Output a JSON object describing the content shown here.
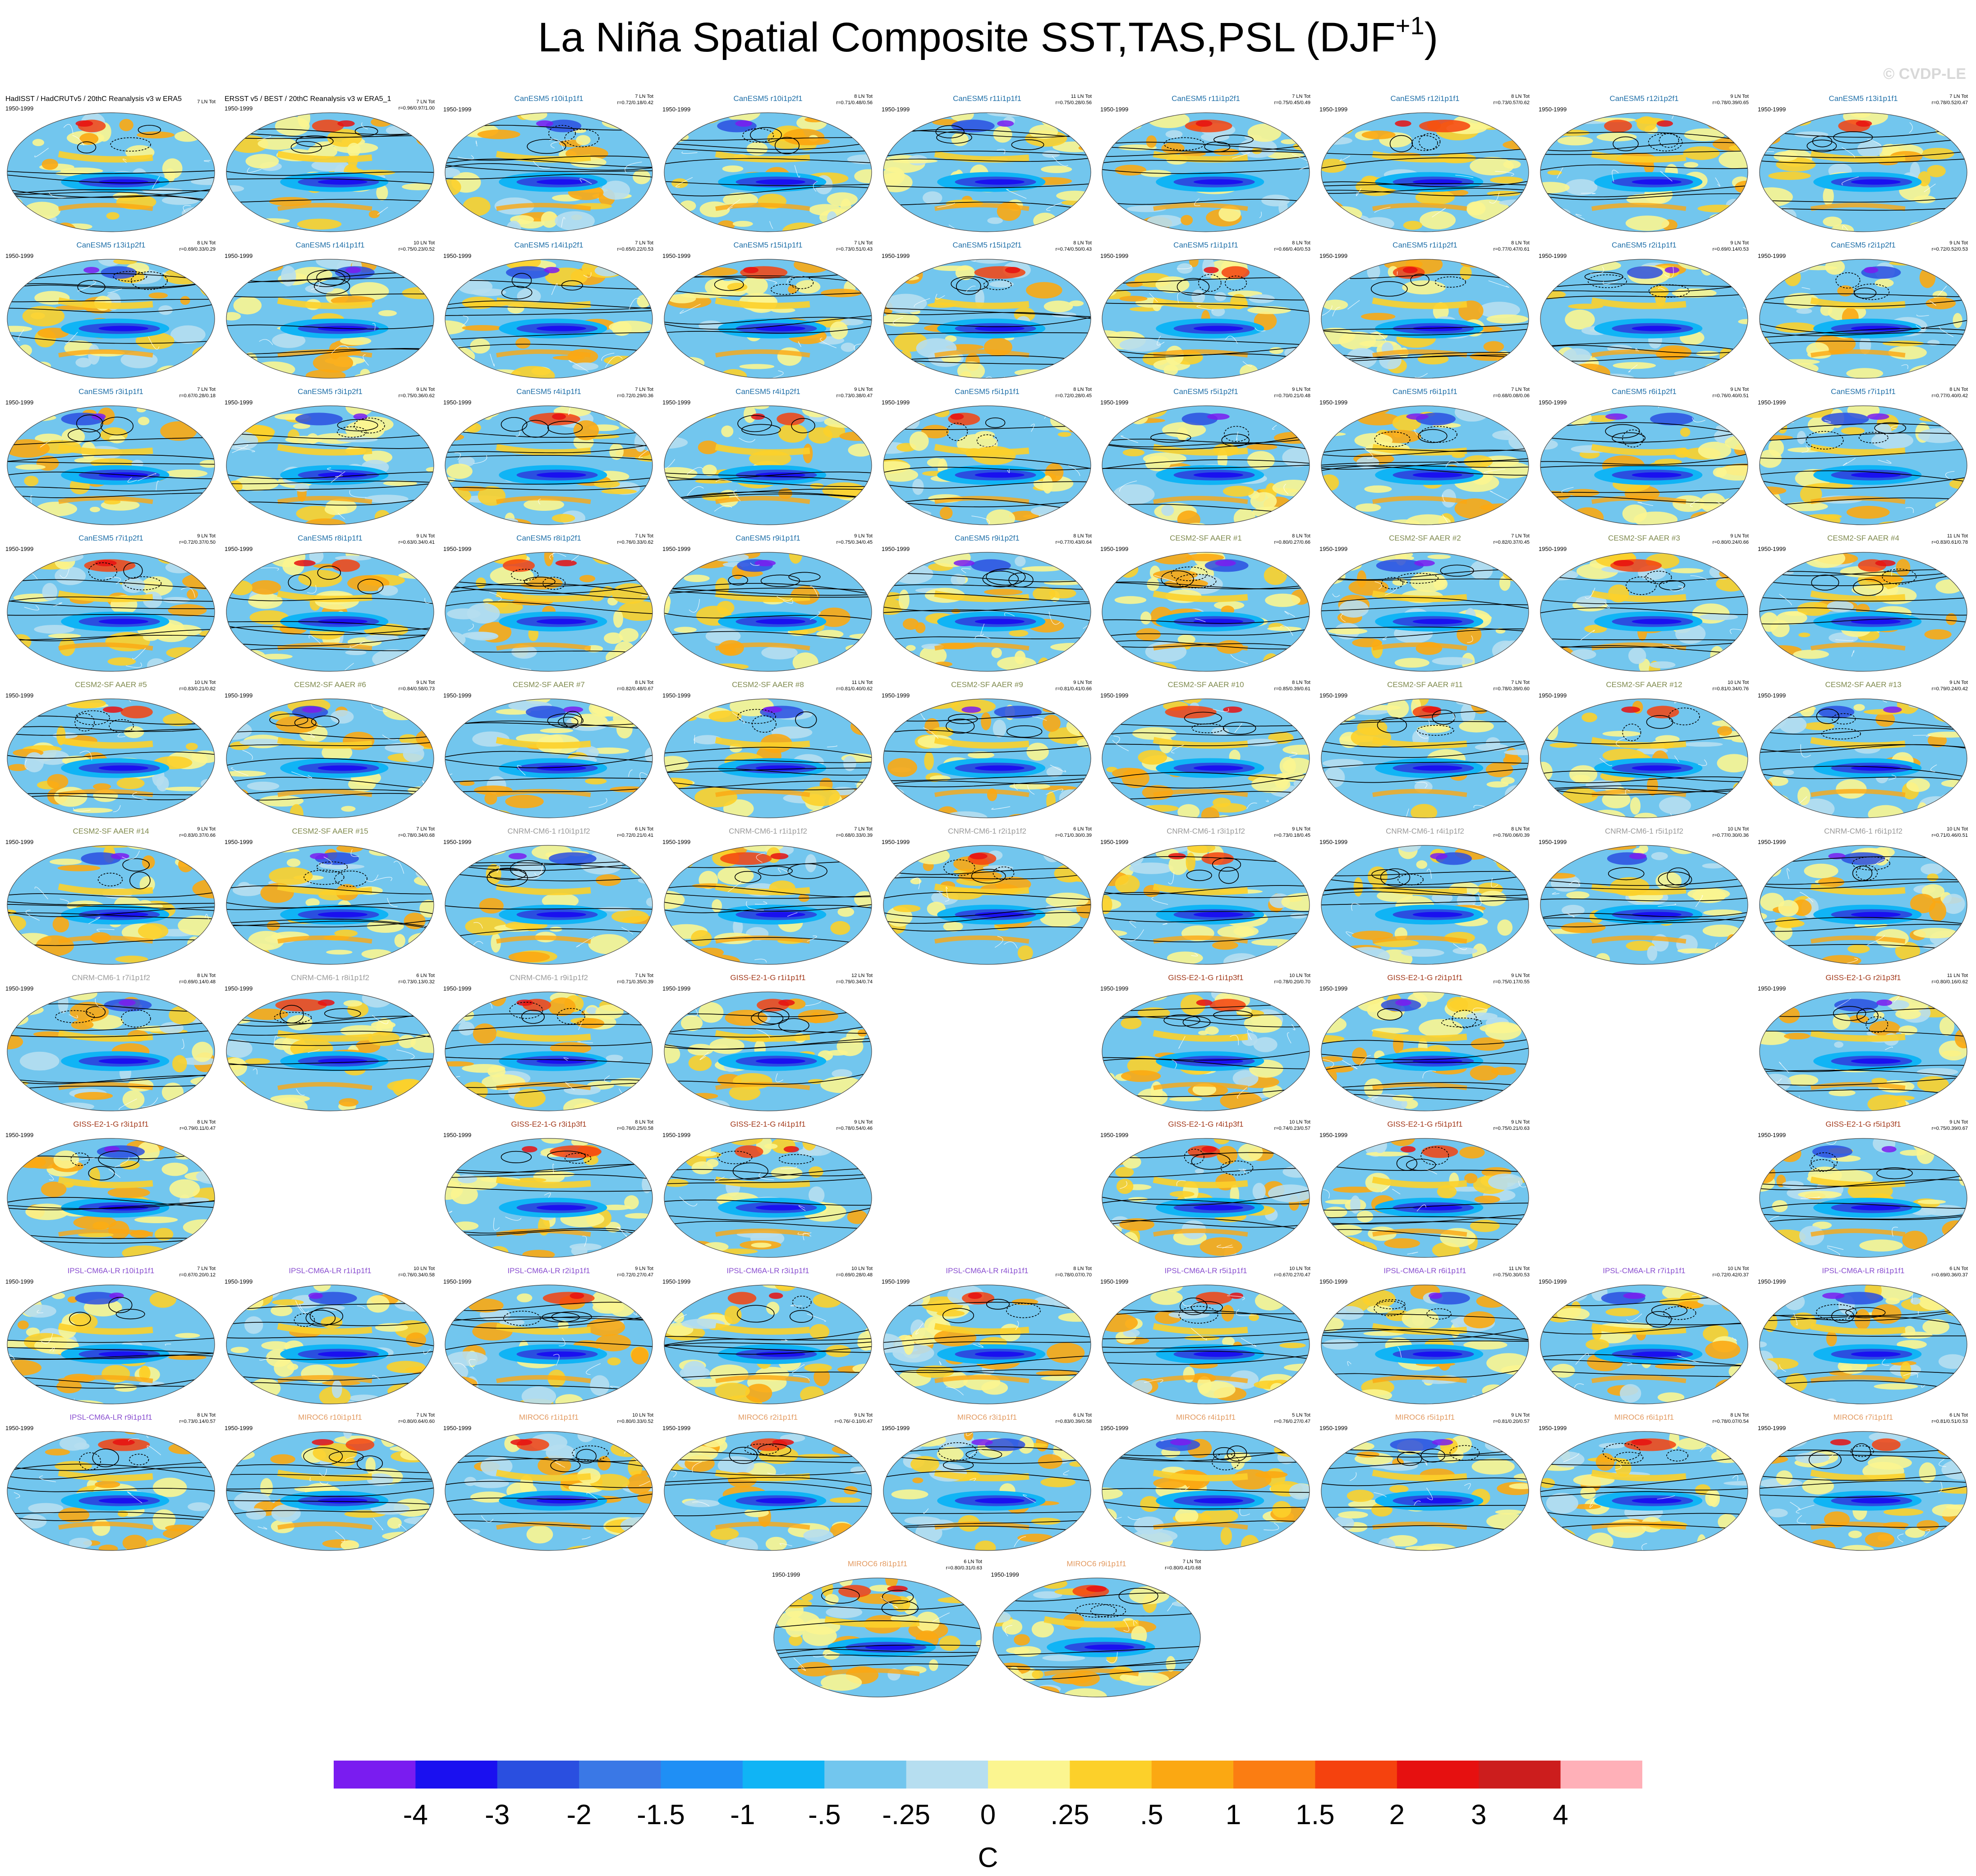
{
  "title_main": "La Niña Spatial Composite SST,TAS,PSL (DJF",
  "title_sup": "+1",
  "title_end": ")",
  "watermark": "© CVDP-LE",
  "period": "1950-1999",
  "colors": {
    "CanESM5": "#1f6fa8",
    "CESM2-SF AAER": "#7f8a4e",
    "CNRM-CM6-1": "#9a9a9a",
    "GISS-E2-1-G": "#a33a1c",
    "IPSL-CM6A-LR": "#8a4fd0",
    "MIROC6": "#e39a60",
    "obs": "#000000"
  },
  "panels": [
    {
      "name": "HadISST / HadCRUTv5 / 20thC Reanalysis v3 w ERA5",
      "group": "obs",
      "tot": "7 LN Tot",
      "stats": "",
      "row": 0,
      "col": 0
    },
    {
      "name": "ERSST v5 / BEST / 20thC Reanalysis v3 w ERA5_1",
      "group": "obs",
      "tot": "7 LN Tot",
      "stats": "r=0.96/0.97/1.00",
      "row": 0,
      "col": 1
    },
    {
      "name": "CanESM5 r10i1p1f1",
      "group": "CanESM5",
      "tot": "7 LN Tot",
      "stats": "r=0.72/0.18/0.42",
      "row": 0,
      "col": 2
    },
    {
      "name": "CanESM5 r10i1p2f1",
      "group": "CanESM5",
      "tot": "8 LN Tot",
      "stats": "r=0.71/0.48/0.56",
      "row": 0,
      "col": 3
    },
    {
      "name": "CanESM5 r11i1p1f1",
      "group": "CanESM5",
      "tot": "11 LN Tot",
      "stats": "r=0.75/0.28/0.56",
      "row": 0,
      "col": 4
    },
    {
      "name": "CanESM5 r11i1p2f1",
      "group": "CanESM5",
      "tot": "7 LN Tot",
      "stats": "r=0.75/0.45/0.49",
      "row": 0,
      "col": 5
    },
    {
      "name": "CanESM5 r12i1p1f1",
      "group": "CanESM5",
      "tot": "8 LN Tot",
      "stats": "r=0.73/0.57/0.62",
      "row": 0,
      "col": 6
    },
    {
      "name": "CanESM5 r12i1p2f1",
      "group": "CanESM5",
      "tot": "9 LN Tot",
      "stats": "r=0.78/0.39/0.65",
      "row": 0,
      "col": 7
    },
    {
      "name": "CanESM5 r13i1p1f1",
      "group": "CanESM5",
      "tot": "7 LN Tot",
      "stats": "r=0.78/0.52/0.47",
      "row": 0,
      "col": 8
    },
    {
      "name": "CanESM5 r13i1p2f1",
      "group": "CanESM5",
      "tot": "8 LN Tot",
      "stats": "r=0.69/0.33/0.29",
      "row": 1,
      "col": 0
    },
    {
      "name": "CanESM5 r14i1p1f1",
      "group": "CanESM5",
      "tot": "10 LN Tot",
      "stats": "r=0.75/0.23/0.52",
      "row": 1,
      "col": 1
    },
    {
      "name": "CanESM5 r14i1p2f1",
      "group": "CanESM5",
      "tot": "7 LN Tot",
      "stats": "r=0.65/0.22/0.53",
      "row": 1,
      "col": 2
    },
    {
      "name": "CanESM5 r15i1p1f1",
      "group": "CanESM5",
      "tot": "7 LN Tot",
      "stats": "r=0.73/0.51/0.43",
      "row": 1,
      "col": 3
    },
    {
      "name": "CanESM5 r15i1p2f1",
      "group": "CanESM5",
      "tot": "8 LN Tot",
      "stats": "r=0.74/0.50/0.43",
      "row": 1,
      "col": 4
    },
    {
      "name": "CanESM5 r1i1p1f1",
      "group": "CanESM5",
      "tot": "8 LN Tot",
      "stats": "r=0.66/0.40/0.53",
      "row": 1,
      "col": 5
    },
    {
      "name": "CanESM5 r1i1p2f1",
      "group": "CanESM5",
      "tot": "8 LN Tot",
      "stats": "r=0.77/0.47/0.61",
      "row": 1,
      "col": 6
    },
    {
      "name": "CanESM5 r2i1p1f1",
      "group": "CanESM5",
      "tot": "9 LN Tot",
      "stats": "r=0.69/0.14/0.53",
      "row": 1,
      "col": 7
    },
    {
      "name": "CanESM5 r2i1p2f1",
      "group": "CanESM5",
      "tot": "9 LN Tot",
      "stats": "r=0.72/0.52/0.53",
      "row": 1,
      "col": 8
    },
    {
      "name": "CanESM5 r3i1p1f1",
      "group": "CanESM5",
      "tot": "7 LN Tot",
      "stats": "r=0.67/0.28/0.18",
      "row": 2,
      "col": 0
    },
    {
      "name": "CanESM5 r3i1p2f1",
      "group": "CanESM5",
      "tot": "9 LN Tot",
      "stats": "r=0.75/0.36/0.62",
      "row": 2,
      "col": 1
    },
    {
      "name": "CanESM5 r4i1p1f1",
      "group": "CanESM5",
      "tot": "7 LN Tot",
      "stats": "r=0.72/0.29/0.36",
      "row": 2,
      "col": 2
    },
    {
      "name": "CanESM5 r4i1p2f1",
      "group": "CanESM5",
      "tot": "9 LN Tot",
      "stats": "r=0.73/0.38/0.47",
      "row": 2,
      "col": 3
    },
    {
      "name": "CanESM5 r5i1p1f1",
      "group": "CanESM5",
      "tot": "8 LN Tot",
      "stats": "r=0.72/0.28/0.45",
      "row": 2,
      "col": 4
    },
    {
      "name": "CanESM5 r5i1p2f1",
      "group": "CanESM5",
      "tot": "9 LN Tot",
      "stats": "r=0.70/0.21/0.48",
      "row": 2,
      "col": 5
    },
    {
      "name": "CanESM5 r6i1p1f1",
      "group": "CanESM5",
      "tot": "7 LN Tot",
      "stats": "r=0.68/0.08/0.06",
      "row": 2,
      "col": 6
    },
    {
      "name": "CanESM5 r6i1p2f1",
      "group": "CanESM5",
      "tot": "9 LN Tot",
      "stats": "r=0.76/0.40/0.51",
      "row": 2,
      "col": 7
    },
    {
      "name": "CanESM5 r7i1p1f1",
      "group": "CanESM5",
      "tot": "8 LN Tot",
      "stats": "r=0.77/0.40/0.42",
      "row": 2,
      "col": 8
    },
    {
      "name": "CanESM5 r7i1p2f1",
      "group": "CanESM5",
      "tot": "9 LN Tot",
      "stats": "r=0.72/0.37/0.50",
      "row": 3,
      "col": 0
    },
    {
      "name": "CanESM5 r8i1p1f1",
      "group": "CanESM5",
      "tot": "9 LN Tot",
      "stats": "r=0.63/0.34/0.41",
      "row": 3,
      "col": 1
    },
    {
      "name": "CanESM5 r8i1p2f1",
      "group": "CanESM5",
      "tot": "7 LN Tot",
      "stats": "r=0.76/0.33/0.62",
      "row": 3,
      "col": 2
    },
    {
      "name": "CanESM5 r9i1p1f1",
      "group": "CanESM5",
      "tot": "9 LN Tot",
      "stats": "r=0.75/0.34/0.45",
      "row": 3,
      "col": 3
    },
    {
      "name": "CanESM5 r9i1p2f1",
      "group": "CanESM5",
      "tot": "8 LN Tot",
      "stats": "r=0.77/0.43/0.64",
      "row": 3,
      "col": 4
    },
    {
      "name": "CESM2-SF AAER #1",
      "group": "CESM2-SF AAER",
      "tot": "8 LN Tot",
      "stats": "r=0.80/0.27/0.66",
      "row": 3,
      "col": 5
    },
    {
      "name": "CESM2-SF AAER #2",
      "group": "CESM2-SF AAER",
      "tot": "7 LN Tot",
      "stats": "r=0.82/0.37/0.45",
      "row": 3,
      "col": 6
    },
    {
      "name": "CESM2-SF AAER #3",
      "group": "CESM2-SF AAER",
      "tot": "9 LN Tot",
      "stats": "r=0.80/0.24/0.66",
      "row": 3,
      "col": 7
    },
    {
      "name": "CESM2-SF AAER #4",
      "group": "CESM2-SF AAER",
      "tot": "11 LN Tot",
      "stats": "r=0.83/0.61/0.78",
      "row": 3,
      "col": 8
    },
    {
      "name": "CESM2-SF AAER #5",
      "group": "CESM2-SF AAER",
      "tot": "10 LN Tot",
      "stats": "r=0.83/0.21/0.82",
      "row": 4,
      "col": 0
    },
    {
      "name": "CESM2-SF AAER #6",
      "group": "CESM2-SF AAER",
      "tot": "9 LN Tot",
      "stats": "r=0.84/0.58/0.73",
      "row": 4,
      "col": 1
    },
    {
      "name": "CESM2-SF AAER #7",
      "group": "CESM2-SF AAER",
      "tot": "8 LN Tot",
      "stats": "r=0.82/0.48/0.67",
      "row": 4,
      "col": 2
    },
    {
      "name": "CESM2-SF AAER #8",
      "group": "CESM2-SF AAER",
      "tot": "11 LN Tot",
      "stats": "r=0.81/0.40/0.62",
      "row": 4,
      "col": 3
    },
    {
      "name": "CESM2-SF AAER #9",
      "group": "CESM2-SF AAER",
      "tot": "9 LN Tot",
      "stats": "r=0.81/0.41/0.66",
      "row": 4,
      "col": 4
    },
    {
      "name": "CESM2-SF AAER #10",
      "group": "CESM2-SF AAER",
      "tot": "8 LN Tot",
      "stats": "r=0.85/0.39/0.61",
      "row": 4,
      "col": 5
    },
    {
      "name": "CESM2-SF AAER #11",
      "group": "CESM2-SF AAER",
      "tot": "7 LN Tot",
      "stats": "r=0.78/0.39/0.60",
      "row": 4,
      "col": 6
    },
    {
      "name": "CESM2-SF AAER #12",
      "group": "CESM2-SF AAER",
      "tot": "10 LN Tot",
      "stats": "r=0.81/0.34/0.76",
      "row": 4,
      "col": 7
    },
    {
      "name": "CESM2-SF AAER #13",
      "group": "CESM2-SF AAER",
      "tot": "9 LN Tot",
      "stats": "r=0.79/0.24/0.42",
      "row": 4,
      "col": 8
    },
    {
      "name": "CESM2-SF AAER #14",
      "group": "CESM2-SF AAER",
      "tot": "9 LN Tot",
      "stats": "r=0.83/0.37/0.66",
      "row": 5,
      "col": 0
    },
    {
      "name": "CESM2-SF AAER #15",
      "group": "CESM2-SF AAER",
      "tot": "7 LN Tot",
      "stats": "r=0.78/0.34/0.68",
      "row": 5,
      "col": 1
    },
    {
      "name": "CNRM-CM6-1 r10i1p1f2",
      "group": "CNRM-CM6-1",
      "tot": "6 LN Tot",
      "stats": "r=0.72/0.21/0.41",
      "row": 5,
      "col": 2
    },
    {
      "name": "CNRM-CM6-1 r1i1p1f2",
      "group": "CNRM-CM6-1",
      "tot": "7 LN Tot",
      "stats": "r=0.68/0.33/0.39",
      "row": 5,
      "col": 3
    },
    {
      "name": "CNRM-CM6-1 r2i1p1f2",
      "group": "CNRM-CM6-1",
      "tot": "6 LN Tot",
      "stats": "r=0.71/0.30/0.39",
      "row": 5,
      "col": 4
    },
    {
      "name": "CNRM-CM6-1 r3i1p1f2",
      "group": "CNRM-CM6-1",
      "tot": "9 LN Tot",
      "stats": "r=0.73/0.18/0.45",
      "row": 5,
      "col": 5
    },
    {
      "name": "CNRM-CM6-1 r4i1p1f2",
      "group": "CNRM-CM6-1",
      "tot": "8 LN Tot",
      "stats": "r=0.76/0.06/0.39",
      "row": 5,
      "col": 6
    },
    {
      "name": "CNRM-CM6-1 r5i1p1f2",
      "group": "CNRM-CM6-1",
      "tot": "10 LN Tot",
      "stats": "r=0.77/0.30/0.36",
      "row": 5,
      "col": 7
    },
    {
      "name": "CNRM-CM6-1 r6i1p1f2",
      "group": "CNRM-CM6-1",
      "tot": "10 LN Tot",
      "stats": "r=0.71/0.46/0.51",
      "row": 5,
      "col": 8
    },
    {
      "name": "CNRM-CM6-1 r7i1p1f2",
      "group": "CNRM-CM6-1",
      "tot": "8 LN Tot",
      "stats": "r=0.69/0.14/0.48",
      "row": 6,
      "col": 0
    },
    {
      "name": "CNRM-CM6-1 r8i1p1f2",
      "group": "CNRM-CM6-1",
      "tot": "6 LN Tot",
      "stats": "r=0.73/0.13/0.32",
      "row": 6,
      "col": 1
    },
    {
      "name": "CNRM-CM6-1 r9i1p1f2",
      "group": "CNRM-CM6-1",
      "tot": "7 LN Tot",
      "stats": "r=0.71/0.35/0.39",
      "row": 6,
      "col": 2
    },
    {
      "name": "GISS-E2-1-G r1i1p1f1",
      "group": "GISS-E2-1-G",
      "tot": "12 LN Tot",
      "stats": "r=0.79/0.34/0.74",
      "row": 6,
      "col": 3
    },
    {
      "name": "GISS-E2-1-G r1i1p3f1",
      "group": "GISS-E2-1-G",
      "tot": "10 LN Tot",
      "stats": "r=0.78/0.20/0.70",
      "row": 6,
      "col": 5
    },
    {
      "name": "GISS-E2-1-G r2i1p1f1",
      "group": "GISS-E2-1-G",
      "tot": "9 LN Tot",
      "stats": "r=0.75/0.17/0.55",
      "row": 6,
      "col": 6
    },
    {
      "name": "GISS-E2-1-G r2i1p3f1",
      "group": "GISS-E2-1-G",
      "tot": "11 LN Tot",
      "stats": "r=0.80/0.16/0.62",
      "row": 6,
      "col": 8
    },
    {
      "name": "GISS-E2-1-G r3i1p1f1",
      "group": "GISS-E2-1-G",
      "tot": "8 LN Tot",
      "stats": "r=0.79/0.11/0.47",
      "row": 7,
      "col": 0
    },
    {
      "name": "GISS-E2-1-G r3i1p3f1",
      "group": "GISS-E2-1-G",
      "tot": "8 LN Tot",
      "stats": "r=0.76/0.25/0.58",
      "row": 7,
      "col": 2
    },
    {
      "name": "GISS-E2-1-G r4i1p1f1",
      "group": "GISS-E2-1-G",
      "tot": "9 LN Tot",
      "stats": "r=0.78/0.54/0.46",
      "row": 7,
      "col": 3
    },
    {
      "name": "GISS-E2-1-G r4i1p3f1",
      "group": "GISS-E2-1-G",
      "tot": "10 LN Tot",
      "stats": "r=0.74/0.23/0.57",
      "row": 7,
      "col": 5
    },
    {
      "name": "GISS-E2-1-G r5i1p1f1",
      "group": "GISS-E2-1-G",
      "tot": "9 LN Tot",
      "stats": "r=0.75/0.21/0.63",
      "row": 7,
      "col": 6
    },
    {
      "name": "GISS-E2-1-G r5i1p3f1",
      "group": "GISS-E2-1-G",
      "tot": "9 LN Tot",
      "stats": "r=0.75/0.39/0.67",
      "row": 7,
      "col": 8
    },
    {
      "name": "IPSL-CM6A-LR r10i1p1f1",
      "group": "IPSL-CM6A-LR",
      "tot": "7 LN Tot",
      "stats": "r=0.67/0.20/0.12",
      "row": 8,
      "col": 0
    },
    {
      "name": "IPSL-CM6A-LR r1i1p1f1",
      "group": "IPSL-CM6A-LR",
      "tot": "10 LN Tot",
      "stats": "r=0.76/0.34/0.58",
      "row": 8,
      "col": 1
    },
    {
      "name": "IPSL-CM6A-LR r2i1p1f1",
      "group": "IPSL-CM6A-LR",
      "tot": "9 LN Tot",
      "stats": "r=0.72/0.27/0.47",
      "row": 8,
      "col": 2
    },
    {
      "name": "IPSL-CM6A-LR r3i1p1f1",
      "group": "IPSL-CM6A-LR",
      "tot": "10 LN Tot",
      "stats": "r=0.69/0.28/0.48",
      "row": 8,
      "col": 3
    },
    {
      "name": "IPSL-CM6A-LR r4i1p1f1",
      "group": "IPSL-CM6A-LR",
      "tot": "8 LN Tot",
      "stats": "r=0.78/0.07/0.70",
      "row": 8,
      "col": 4
    },
    {
      "name": "IPSL-CM6A-LR r5i1p1f1",
      "group": "IPSL-CM6A-LR",
      "tot": "10 LN Tot",
      "stats": "r=0.67/0.27/0.47",
      "row": 8,
      "col": 5
    },
    {
      "name": "IPSL-CM6A-LR r6i1p1f1",
      "group": "IPSL-CM6A-LR",
      "tot": "11 LN Tot",
      "stats": "r=0.75/0.30/0.53",
      "row": 8,
      "col": 6
    },
    {
      "name": "IPSL-CM6A-LR r7i1p1f1",
      "group": "IPSL-CM6A-LR",
      "tot": "10 LN Tot",
      "stats": "r=0.72/0.42/0.37",
      "row": 8,
      "col": 7
    },
    {
      "name": "IPSL-CM6A-LR r8i1p1f1",
      "group": "IPSL-CM6A-LR",
      "tot": "6 LN Tot",
      "stats": "r=0.69/0.36/0.37",
      "row": 8,
      "col": 8
    },
    {
      "name": "IPSL-CM6A-LR r9i1p1f1",
      "group": "IPSL-CM6A-LR",
      "tot": "8 LN Tot",
      "stats": "r=0.73/0.14/0.57",
      "row": 9,
      "col": 0
    },
    {
      "name": "MIROC6 r10i1p1f1",
      "group": "MIROC6",
      "tot": "7 LN Tot",
      "stats": "r=0.80/0.64/0.60",
      "row": 9,
      "col": 1
    },
    {
      "name": "MIROC6 r1i1p1f1",
      "group": "MIROC6",
      "tot": "10 LN Tot",
      "stats": "r=0.80/0.33/0.52",
      "row": 9,
      "col": 2
    },
    {
      "name": "MIROC6 r2i1p1f1",
      "group": "MIROC6",
      "tot": "9 LN Tot",
      "stats": "r=0.76/-0.10/0.47",
      "row": 9,
      "col": 3
    },
    {
      "name": "MIROC6 r3i1p1f1",
      "group": "MIROC6",
      "tot": "6 LN Tot",
      "stats": "r=0.83/0.39/0.58",
      "row": 9,
      "col": 4
    },
    {
      "name": "MIROC6 r4i1p1f1",
      "group": "MIROC6",
      "tot": "5 LN Tot",
      "stats": "r=0.76/0.27/0.47",
      "row": 9,
      "col": 5
    },
    {
      "name": "MIROC6 r5i1p1f1",
      "group": "MIROC6",
      "tot": "9 LN Tot",
      "stats": "r=0.81/0.20/0.57",
      "row": 9,
      "col": 6
    },
    {
      "name": "MIROC6 r6i1p1f1",
      "group": "MIROC6",
      "tot": "8 LN Tot",
      "stats": "r=0.78/0.07/0.54",
      "row": 9,
      "col": 7
    },
    {
      "name": "MIROC6 r7i1p1f1",
      "group": "MIROC6",
      "tot": "6 LN Tot",
      "stats": "r=0.81/0.51/0.53",
      "row": 9,
      "col": 8
    },
    {
      "name": "MIROC6 r8i1p1f1",
      "group": "MIROC6",
      "tot": "6 LN Tot",
      "stats": "r=0.80/0.31/0.63",
      "row": 10,
      "col": 3.5
    },
    {
      "name": "MIROC6 r9i1p1f1",
      "group": "MIROC6",
      "tot": "7 LN Tot",
      "stats": "r=0.80/0.41/0.68",
      "row": 10,
      "col": 4.5
    }
  ],
  "chart_data": {
    "type": "heatmap",
    "title": "La Niña Spatial Composite SST,TAS,PSL (DJF+1)",
    "colorbar": {
      "label": "C",
      "ticks": [
        "-4",
        "-3",
        "-2",
        "-1.5",
        "-1",
        "-.5",
        "-.25",
        "0",
        ".25",
        ".5",
        "1",
        "1.5",
        "2",
        "3",
        "4"
      ],
      "colors": [
        "#7a1cf0",
        "#1a10f0",
        "#2a4fe0",
        "#3a78e6",
        "#1f8ff5",
        "#10b4f5",
        "#72c6ee",
        "#b6def0",
        "#fbf590",
        "#fcd02a",
        "#fba812",
        "#fb7d12",
        "#f5420e",
        "#e61010",
        "#cc1d1d",
        "#ffb0b8"
      ]
    }
  }
}
